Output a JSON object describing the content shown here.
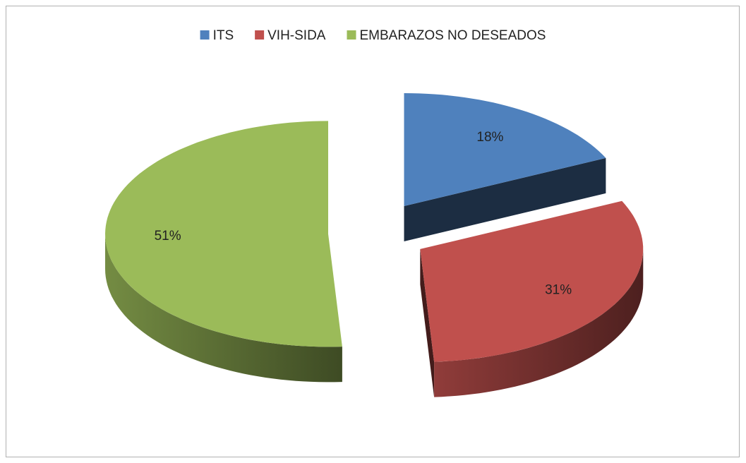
{
  "chart_data": {
    "type": "pie",
    "categories": [
      "ITS",
      "VIH-SIDA",
      "EMBARAZOS NO DESEADOS"
    ],
    "values": [
      18,
      31,
      51
    ],
    "value_labels": [
      "18%",
      "31%",
      "51%"
    ],
    "colors": [
      "#4f81bd",
      "#c0504d",
      "#9bbb59"
    ],
    "legend": "top"
  }
}
